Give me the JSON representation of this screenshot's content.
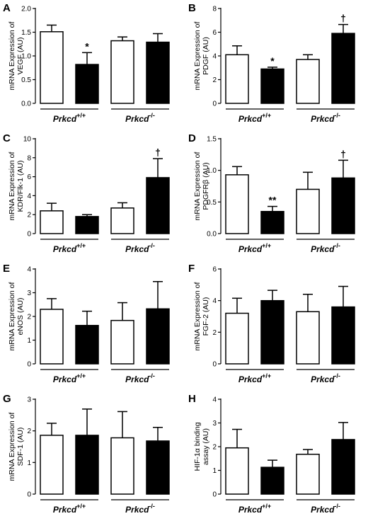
{
  "colors": {
    "wt_fill": "#ffffff",
    "ko_fill": "#000000",
    "stroke": "#000000"
  },
  "groups": [
    {
      "name": "Prkcd",
      "sup": "+/+"
    },
    {
      "name": "Prkcd",
      "sup": "-/-"
    }
  ],
  "chart_data": [
    {
      "type": "bar",
      "panel": "A",
      "ylabel": [
        "mRNA Expression of",
        "VEGF (AU)"
      ],
      "ylim": [
        0,
        2.0
      ],
      "yticks": [
        "0.0",
        "0.5",
        "1.0",
        "1.5",
        "2.0"
      ],
      "ytick_values": [
        0,
        0.5,
        1.0,
        1.5,
        2.0
      ],
      "values": [
        1.51,
        0.82,
        1.32,
        1.29
      ],
      "errors": [
        0.14,
        0.25,
        0.08,
        0.18
      ],
      "annotations": [
        "",
        "*",
        "",
        ""
      ]
    },
    {
      "type": "bar",
      "panel": "B",
      "ylabel": [
        "mRNA Expression of",
        "PDGF (AU)"
      ],
      "ylim": [
        0,
        8
      ],
      "yticks": [
        "0",
        "2",
        "4",
        "6",
        "8"
      ],
      "ytick_values": [
        0,
        2,
        4,
        6,
        8
      ],
      "values": [
        4.1,
        2.9,
        3.7,
        5.9
      ],
      "errors": [
        0.75,
        0.15,
        0.4,
        0.75
      ],
      "annotations": [
        "",
        "*",
        "",
        "†"
      ]
    },
    {
      "type": "bar",
      "panel": "C",
      "ylabel": [
        "mRNA Expression of",
        "KDR/Flk-1 (AU)"
      ],
      "ylim": [
        0,
        10
      ],
      "yticks": [
        "0",
        "2",
        "4",
        "6",
        "8",
        "10"
      ],
      "ytick_values": [
        0,
        2,
        4,
        6,
        8,
        10
      ],
      "values": [
        2.4,
        1.8,
        2.7,
        5.9
      ],
      "errors": [
        0.8,
        0.2,
        0.55,
        2.0
      ],
      "annotations": [
        "",
        "",
        "",
        "†"
      ]
    },
    {
      "type": "bar",
      "panel": "D",
      "ylabel": [
        "mRNA Expression of",
        "PDGFRβ (AU)"
      ],
      "ylim": [
        0,
        1.5
      ],
      "yticks": [
        "0.0",
        "0.5",
        "1.0",
        "1.5"
      ],
      "ytick_values": [
        0,
        0.5,
        1.0,
        1.5
      ],
      "values": [
        0.93,
        0.35,
        0.7,
        0.88
      ],
      "errors": [
        0.13,
        0.08,
        0.27,
        0.28
      ],
      "annotations": [
        "",
        "**",
        "",
        "†"
      ]
    },
    {
      "type": "bar",
      "panel": "E",
      "ylabel": [
        "mRNA Expression of",
        "eNOS (AU)"
      ],
      "ylim": [
        0,
        4
      ],
      "yticks": [
        "0",
        "1",
        "2",
        "3",
        "4"
      ],
      "ytick_values": [
        0,
        1,
        2,
        3,
        4
      ],
      "values": [
        2.3,
        1.62,
        1.83,
        2.32
      ],
      "errors": [
        0.45,
        0.6,
        0.75,
        1.15
      ],
      "annotations": [
        "",
        "",
        "",
        ""
      ]
    },
    {
      "type": "bar",
      "panel": "F",
      "ylabel": [
        "mRNA Expression of",
        "FGF-2 (AU)"
      ],
      "ylim": [
        0,
        6
      ],
      "yticks": [
        "0",
        "2",
        "4",
        "6"
      ],
      "ytick_values": [
        0,
        2,
        4,
        6
      ],
      "values": [
        3.2,
        4.0,
        3.3,
        3.6
      ],
      "errors": [
        0.95,
        0.65,
        1.1,
        1.3
      ],
      "annotations": [
        "",
        "",
        "",
        ""
      ]
    },
    {
      "type": "bar",
      "panel": "G",
      "ylabel": [
        "mRNA Expression of",
        "SDF-1 (AU)"
      ],
      "ylim": [
        0,
        3
      ],
      "yticks": [
        "0",
        "1",
        "2",
        "3"
      ],
      "ytick_values": [
        0,
        1,
        2,
        3
      ],
      "values": [
        1.86,
        1.86,
        1.78,
        1.68
      ],
      "errors": [
        0.38,
        0.83,
        0.83,
        0.43
      ],
      "annotations": [
        "",
        "",
        "",
        ""
      ]
    },
    {
      "type": "bar",
      "panel": "H",
      "ylabel": [
        "HIF-1α binding",
        "assay (AU)"
      ],
      "ylim": [
        0,
        4
      ],
      "yticks": [
        "0",
        "1",
        "2",
        "3",
        "4"
      ],
      "ytick_values": [
        0,
        1,
        2,
        3,
        4
      ],
      "values": [
        1.95,
        1.13,
        1.68,
        2.3
      ],
      "errors": [
        0.78,
        0.3,
        0.2,
        0.72
      ],
      "annotations": [
        "",
        "",
        "",
        ""
      ]
    }
  ]
}
